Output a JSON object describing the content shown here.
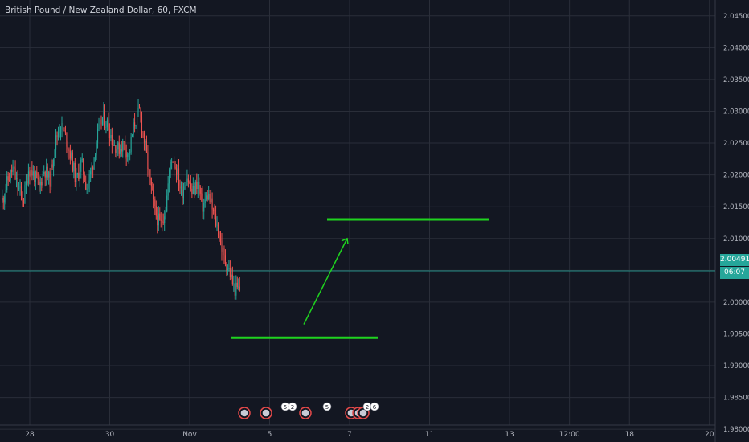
{
  "chart": {
    "title": "British Pound / New Zealand Dollar, 60, FXCM",
    "current_price_label": "2.00491",
    "countdown_label": "06:07"
  },
  "colors": {
    "background": "#131722",
    "grid": "#2a2e39",
    "up": "#26a69a",
    "down": "#ef5350",
    "drawing": "#1fd31f",
    "text": "#b2b5be"
  },
  "chart_data": {
    "type": "candlestick",
    "symbol": "GBPNZD",
    "interval": "60",
    "source": "FXCM",
    "ylim": [
      1.978,
      2.0475
    ],
    "y_ticks": [
      "2.04500",
      "2.04000",
      "2.03500",
      "2.03000",
      "2.02500",
      "2.02000",
      "2.01500",
      "2.01000",
      "2.00500",
      "2.00000",
      "1.99500",
      "1.99000",
      "1.98500",
      "1.98000"
    ],
    "x_ticks": [
      "28",
      "30",
      "Nov",
      "5",
      "7",
      "11",
      "13",
      "12:00",
      "18",
      "20"
    ],
    "current_price": 2.00491,
    "price_path": [
      2.016,
      2.019,
      2.021,
      2.018,
      2.016,
      2.021,
      2.02,
      2.018,
      2.021,
      2.019,
      2.025,
      2.028,
      2.026,
      2.023,
      2.019,
      2.022,
      2.018,
      2.021,
      2.026,
      2.029,
      2.028,
      2.025,
      2.024,
      2.025,
      2.023,
      2.028,
      2.03,
      2.025,
      2.019,
      2.014,
      2.012,
      2.015,
      2.023,
      2.021,
      2.017,
      2.02,
      2.017,
      2.019,
      2.015,
      2.017,
      2.014,
      2.011,
      2.007,
      2.005,
      2.002,
      2.002
    ],
    "drawings": [
      {
        "type": "horizontal_segment",
        "price": 1.9944,
        "x_from": "4",
        "x_to": "9"
      },
      {
        "type": "horizontal_segment",
        "price": 2.013,
        "x_from": "6.5",
        "x_to": "12.5"
      },
      {
        "type": "arrow",
        "from": {
          "x": "5.9",
          "price": 1.9965
        },
        "to": {
          "x": "7",
          "price": 2.01
        }
      }
    ]
  },
  "events": [
    {
      "label": ""
    },
    {
      "label": ""
    },
    {
      "label": "5"
    },
    {
      "label": "2"
    },
    {
      "label": ""
    },
    {
      "label": "5"
    },
    {
      "label": ""
    },
    {
      "label": ""
    },
    {
      "label": ""
    },
    {
      "label": "2"
    },
    {
      "label": "6"
    }
  ]
}
